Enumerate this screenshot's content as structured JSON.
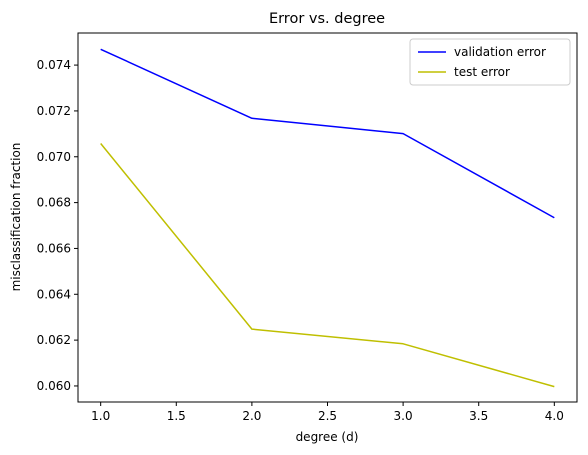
{
  "chart_data": {
    "type": "line",
    "title": "Error vs. degree",
    "xlabel": "degree (d)",
    "ylabel": "misclassification fraction",
    "x": [
      1.0,
      2.0,
      3.0,
      4.0
    ],
    "series": [
      {
        "name": "validation error",
        "color": "#0000ff",
        "values": [
          0.07469,
          0.07168,
          0.07101,
          0.06734
        ]
      },
      {
        "name": "test error",
        "color": "#bfbf00",
        "values": [
          0.07058,
          0.06248,
          0.06184,
          0.05997
        ]
      }
    ],
    "xlim": [
      0.85,
      4.15
    ],
    "ylim": [
      0.0593,
      0.0754
    ],
    "xticks": [
      1.0,
      1.5,
      2.0,
      2.5,
      3.0,
      3.5,
      4.0
    ],
    "xtick_labels": [
      "1.0",
      "1.5",
      "2.0",
      "2.5",
      "3.0",
      "3.5",
      "4.0"
    ],
    "yticks": [
      0.06,
      0.062,
      0.064,
      0.066,
      0.068,
      0.07,
      0.072,
      0.074
    ],
    "ytick_labels": [
      "0.060",
      "0.062",
      "0.064",
      "0.066",
      "0.068",
      "0.070",
      "0.072",
      "0.074"
    ],
    "grid": false,
    "legend_position": "top-right"
  }
}
